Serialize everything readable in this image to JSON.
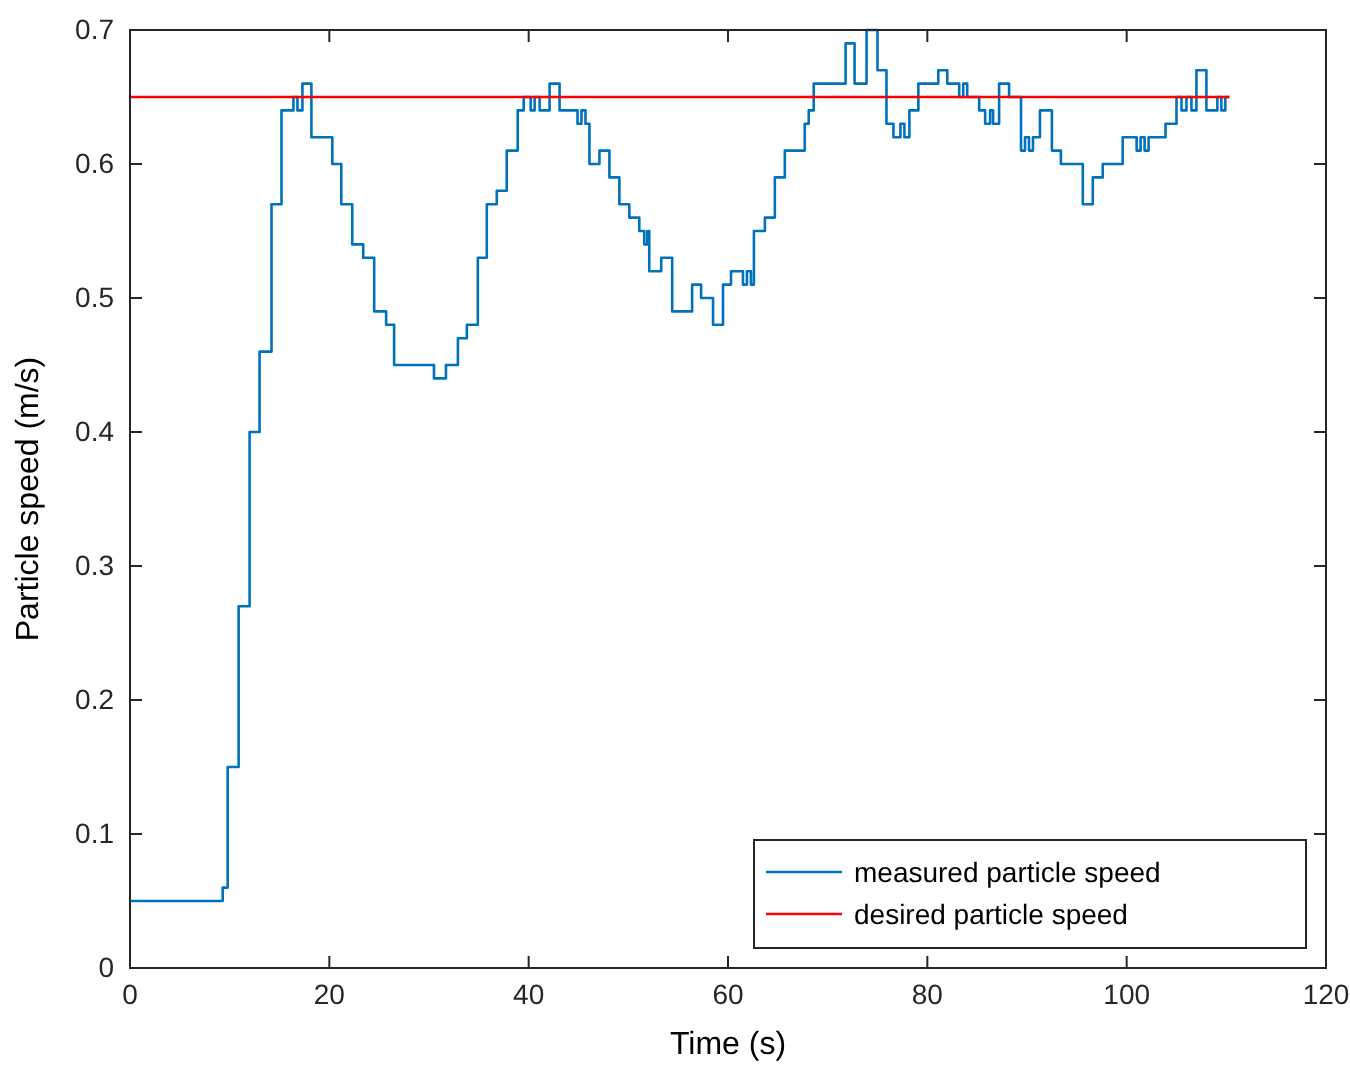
{
  "chart_data": {
    "type": "step",
    "xlabel": "Time (s)",
    "ylabel": "Particle speed (m/s)",
    "xlim": [
      0,
      120
    ],
    "xticks": [
      0,
      20,
      40,
      60,
      80,
      100,
      120
    ],
    "ylim": [
      0,
      0.7
    ],
    "yticks": [
      0,
      0.1,
      0.2,
      0.3,
      0.4,
      0.5,
      0.6,
      0.7
    ],
    "grid": false,
    "legend": "bottom right",
    "series": [
      {
        "name": "measured particle speed",
        "color": "#0072bd",
        "x": [
          0,
          9.3,
          9.8,
          10.9,
          12.0,
          13.0,
          14.2,
          15.2,
          16.4,
          16.8,
          17.3,
          18.2,
          20.3,
          21.2,
          22.3,
          23.4,
          24.5,
          25.7,
          26.5,
          30.5,
          31.7,
          32.9,
          33.8,
          34.9,
          35.8,
          36.8,
          37.8,
          38.9,
          39.5,
          40.2,
          40.6,
          41.1,
          42.1,
          43.1,
          44.9,
          45.3,
          45.7,
          46.1,
          47.1,
          48.1,
          49.1,
          50.1,
          51.1,
          51.6,
          51.9,
          52.1,
          53.3,
          54.4,
          56.4,
          57.3,
          58.5,
          59.5,
          60.3,
          61.5,
          61.9,
          62.3,
          62.6,
          63.7,
          64.7,
          65.7,
          67.7,
          68.1,
          68.6,
          71.8,
          72.7,
          73.9,
          75.0,
          75.9,
          76.6,
          77.3,
          77.7,
          78.2,
          79.1,
          81.1,
          82.0,
          83.2,
          83.6,
          84.0,
          85.2,
          85.8,
          86.3,
          86.6,
          87.2,
          88.2,
          89.4,
          89.8,
          90.2,
          90.6,
          91.3,
          92.5,
          93.4,
          95.6,
          96.6,
          97.6,
          99.6,
          101.0,
          101.4,
          101.8,
          102.2,
          103.9,
          105.0,
          105.5,
          106.0,
          106.5,
          107.0,
          108.0,
          109.1,
          109.5,
          109.9,
          110.3
        ],
        "values": [
          0.05,
          0.06,
          0.15,
          0.27,
          0.4,
          0.46,
          0.57,
          0.64,
          0.65,
          0.64,
          0.66,
          0.62,
          0.6,
          0.57,
          0.54,
          0.53,
          0.49,
          0.48,
          0.45,
          0.44,
          0.45,
          0.47,
          0.48,
          0.53,
          0.57,
          0.58,
          0.61,
          0.64,
          0.65,
          0.64,
          0.65,
          0.64,
          0.66,
          0.64,
          0.63,
          0.64,
          0.63,
          0.6,
          0.61,
          0.59,
          0.57,
          0.56,
          0.55,
          0.54,
          0.55,
          0.52,
          0.53,
          0.49,
          0.51,
          0.5,
          0.48,
          0.51,
          0.52,
          0.51,
          0.52,
          0.51,
          0.55,
          0.56,
          0.59,
          0.61,
          0.63,
          0.64,
          0.66,
          0.69,
          0.66,
          0.7,
          0.67,
          0.63,
          0.62,
          0.63,
          0.62,
          0.64,
          0.66,
          0.67,
          0.66,
          0.65,
          0.66,
          0.65,
          0.64,
          0.63,
          0.64,
          0.63,
          0.66,
          0.65,
          0.61,
          0.62,
          0.61,
          0.62,
          0.64,
          0.61,
          0.6,
          0.57,
          0.59,
          0.6,
          0.62,
          0.61,
          0.62,
          0.61,
          0.62,
          0.63,
          0.65,
          0.64,
          0.65,
          0.64,
          0.67,
          0.64,
          0.65,
          0.64,
          0.65,
          0.65
        ]
      },
      {
        "name": "desired particle speed",
        "color": "#ff0000",
        "type": "line",
        "x": [
          0,
          110.3
        ],
        "values": [
          0.65,
          0.65
        ]
      }
    ]
  }
}
